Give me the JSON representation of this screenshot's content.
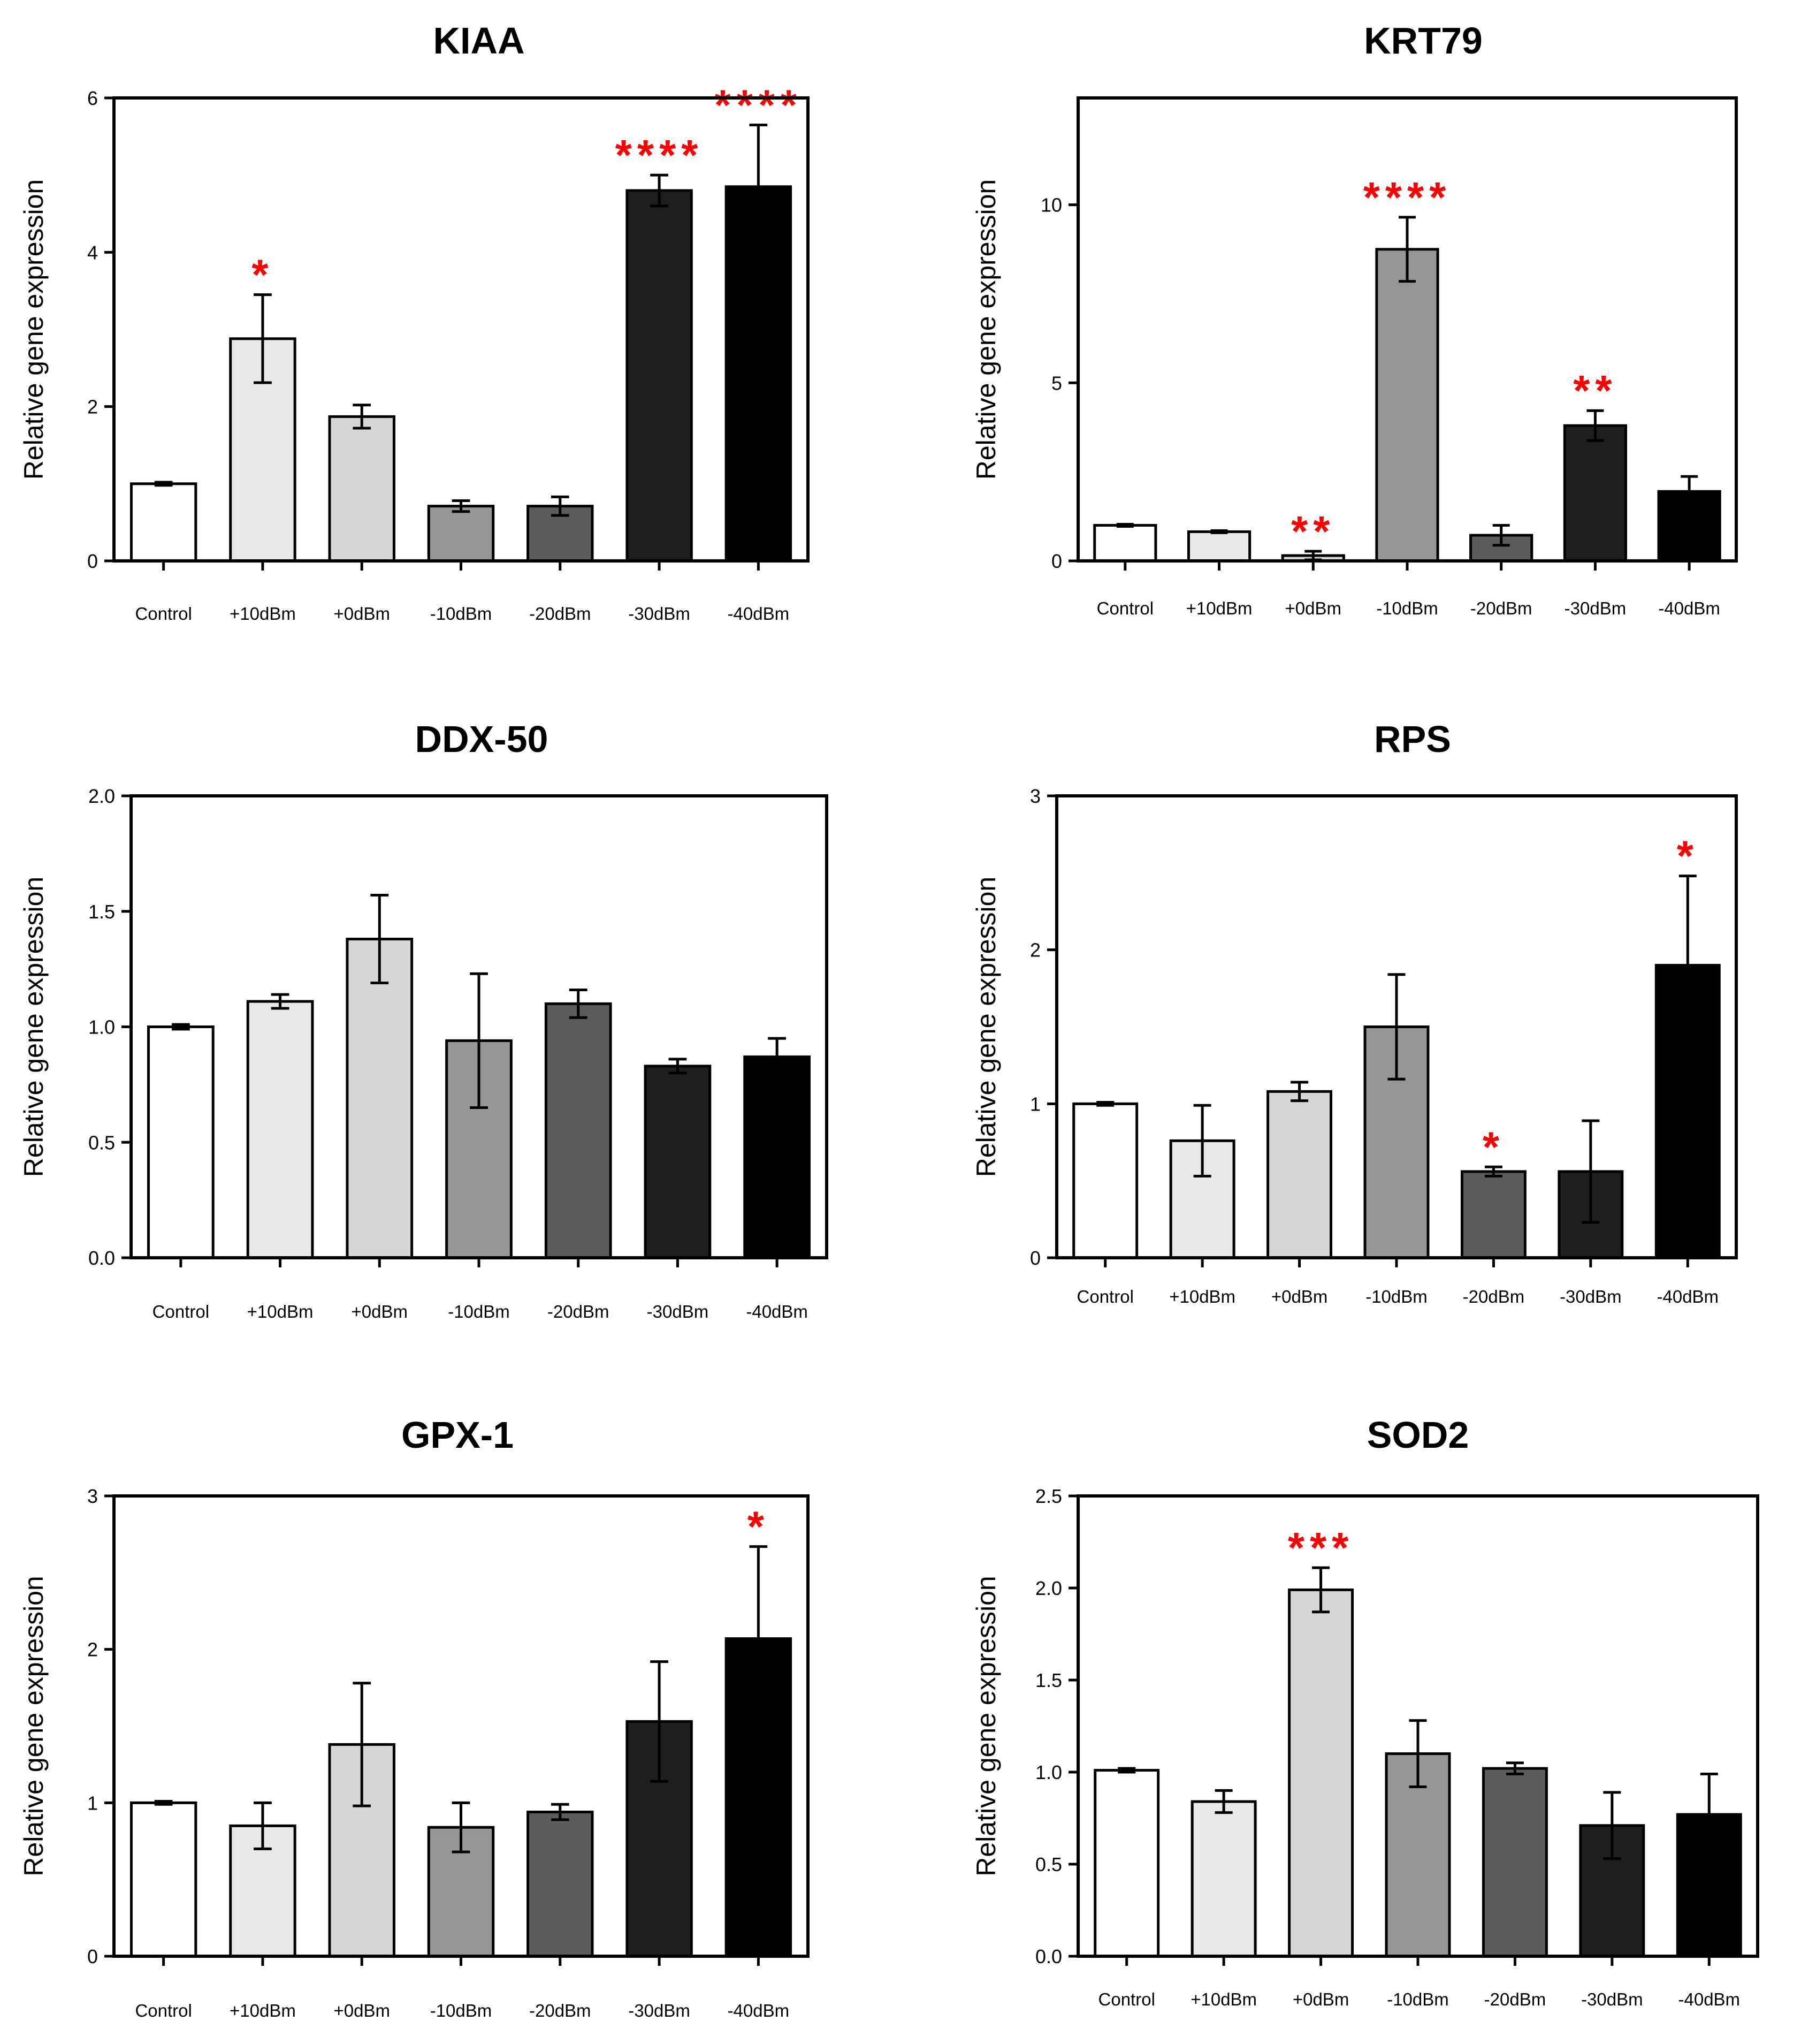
{
  "chart_data": [
    {
      "type": "bar",
      "title": "KIAA",
      "ylabel": "Relative gene expression",
      "categories": [
        "Control",
        "+10dBm",
        "+0dBm",
        "-10dBm",
        "-20dBm",
        "-30dBm",
        "-40dBm"
      ],
      "values": [
        1.0,
        2.88,
        1.87,
        0.71,
        0.71,
        4.8,
        4.85
      ],
      "errors": [
        0.02,
        0.57,
        0.15,
        0.07,
        0.12,
        0.2,
        0.8
      ],
      "significance": [
        "",
        "*",
        "",
        "",
        "",
        "****",
        "****"
      ],
      "ylim": [
        0,
        6
      ],
      "yticks": [
        "0",
        "2",
        "4",
        "6"
      ],
      "ytick_values": [
        0,
        2,
        4,
        6
      ]
    },
    {
      "type": "bar",
      "title": "KRT79",
      "ylabel": "Relative gene expression",
      "categories": [
        "Control",
        "+10dBm",
        "+0dBm",
        "-10dBm",
        "-20dBm",
        "-30dBm",
        "-40dBm"
      ],
      "values": [
        1.0,
        0.82,
        0.15,
        8.75,
        0.72,
        3.8,
        1.95
      ],
      "errors": [
        0.03,
        0.03,
        0.12,
        0.9,
        0.28,
        0.42,
        0.42
      ],
      "significance": [
        "",
        "",
        "**",
        "****",
        "",
        "**",
        ""
      ],
      "ylim": [
        0,
        13
      ],
      "yticks": [
        "0",
        "5",
        "10"
      ],
      "ytick_values": [
        0,
        5,
        10
      ]
    },
    {
      "type": "bar",
      "title": "DDX-50",
      "ylabel": "Relative gene expression",
      "categories": [
        "Control",
        "+10dBm",
        "+0dBm",
        "-10dBm",
        "-20dBm",
        "-30dBm",
        "-40dBm"
      ],
      "values": [
        1.0,
        1.11,
        1.38,
        0.94,
        1.1,
        0.83,
        0.87
      ],
      "errors": [
        0.01,
        0.03,
        0.19,
        0.29,
        0.06,
        0.03,
        0.08
      ],
      "significance": [
        "",
        "",
        "",
        "",
        "",
        "",
        ""
      ],
      "ylim": [
        0,
        2.0
      ],
      "yticks": [
        "0.0",
        "0.5",
        "1.0",
        "1.5",
        "2.0"
      ],
      "ytick_values": [
        0,
        0.5,
        1.0,
        1.5,
        2.0
      ]
    },
    {
      "type": "bar",
      "title": "RPS",
      "ylabel": "Relative gene expression",
      "categories": [
        "Control",
        "+10dBm",
        "+0dBm",
        "-10dBm",
        "-20dBm",
        "-30dBm",
        "-40dBm"
      ],
      "values": [
        1.0,
        0.76,
        1.08,
        1.5,
        0.56,
        0.56,
        1.9
      ],
      "errors": [
        0.01,
        0.23,
        0.06,
        0.34,
        0.03,
        0.33,
        0.58
      ],
      "significance": [
        "",
        "",
        "",
        "",
        "*",
        "",
        "*"
      ],
      "ylim": [
        0,
        3
      ],
      "yticks": [
        "0",
        "1",
        "2",
        "3"
      ],
      "ytick_values": [
        0,
        1,
        2,
        3
      ]
    },
    {
      "type": "bar",
      "title": "GPX-1",
      "ylabel": "Relative gene expression",
      "categories": [
        "Control",
        "+10dBm",
        "+0dBm",
        "-10dBm",
        "-20dBm",
        "-30dBm",
        "-40dBm"
      ],
      "values": [
        1.0,
        0.85,
        1.38,
        0.84,
        0.94,
        1.53,
        2.07
      ],
      "errors": [
        0.01,
        0.15,
        0.4,
        0.16,
        0.05,
        0.39,
        0.6
      ],
      "significance": [
        "",
        "",
        "",
        "",
        "",
        "",
        "*"
      ],
      "ylim": [
        0,
        3
      ],
      "yticks": [
        "0",
        "1",
        "2",
        "3"
      ],
      "ytick_values": [
        0,
        1,
        2,
        3
      ]
    },
    {
      "type": "bar",
      "title": "SOD2",
      "ylabel": "Relative gene expression",
      "categories": [
        "Control",
        "+10dBm",
        "+0dBm",
        "-10dBm",
        "-20dBm",
        "-30dBm",
        "-40dBm"
      ],
      "values": [
        1.01,
        0.84,
        1.99,
        1.1,
        1.02,
        0.71,
        0.77
      ],
      "errors": [
        0.01,
        0.06,
        0.12,
        0.18,
        0.03,
        0.18,
        0.22
      ],
      "significance": [
        "",
        "",
        "***",
        "",
        "",
        "",
        ""
      ],
      "ylim": [
        0,
        2.5
      ],
      "yticks": [
        "0.0",
        "0.5",
        "1.0",
        "1.5",
        "2.0",
        "2.5"
      ],
      "ytick_values": [
        0,
        0.5,
        1.0,
        1.5,
        2.0,
        2.5
      ]
    }
  ],
  "colors": {
    "bar_fills": [
      "#ffffff",
      "#e8e8e8",
      "#d6d6d6",
      "#969696",
      "#5c5c5c",
      "#1e1e1e",
      "#000000"
    ],
    "outline": "#000000",
    "significance": "#ff0000"
  }
}
